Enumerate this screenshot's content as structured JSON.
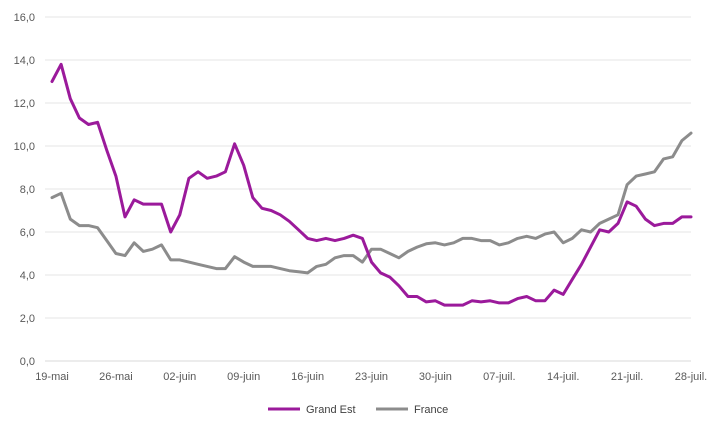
{
  "chart_data": {
    "type": "line",
    "ylim": [
      0,
      16
    ],
    "yticks": [
      "0,0",
      "2,0",
      "4,0",
      "6,0",
      "8,0",
      "10,0",
      "12,0",
      "14,0",
      "16,0"
    ],
    "xtick_labels": [
      "19-mai",
      "26-mai",
      "02-juin",
      "09-juin",
      "16-juin",
      "23-juin",
      "30-juin",
      "07-juil.",
      "14-juil.",
      "21-juil.",
      "28-juil."
    ],
    "grid": "horizontal",
    "legend_position": "bottom",
    "series": [
      {
        "name": "Grand Est",
        "color": "#9b1a9b",
        "values": [
          13.0,
          13.8,
          12.2,
          11.3,
          11.0,
          11.1,
          9.8,
          8.6,
          6.7,
          7.5,
          7.3,
          7.3,
          7.3,
          6.0,
          6.8,
          8.5,
          8.8,
          8.5,
          8.6,
          8.8,
          10.1,
          9.1,
          7.6,
          7.1,
          7.0,
          6.8,
          6.5,
          6.1,
          5.7,
          5.6,
          5.7,
          5.6,
          5.7,
          5.85,
          5.7,
          4.6,
          4.1,
          3.9,
          3.5,
          3.0,
          3.0,
          2.75,
          2.8,
          2.6,
          2.6,
          2.6,
          2.8,
          2.75,
          2.8,
          2.7,
          2.7,
          2.9,
          3.0,
          2.8,
          2.8,
          3.3,
          3.1,
          3.8,
          4.5,
          5.3,
          6.1,
          6.0,
          6.4,
          7.4,
          7.2,
          6.6,
          6.3,
          6.4,
          6.4,
          6.7,
          6.7
        ]
      },
      {
        "name": "France",
        "color": "#8c8c8c",
        "values": [
          7.6,
          7.8,
          6.6,
          6.3,
          6.3,
          6.2,
          5.6,
          5.0,
          4.9,
          5.5,
          5.1,
          5.2,
          5.4,
          4.7,
          4.7,
          4.6,
          4.5,
          4.4,
          4.3,
          4.3,
          4.85,
          4.6,
          4.4,
          4.4,
          4.4,
          4.3,
          4.2,
          4.15,
          4.1,
          4.4,
          4.5,
          4.8,
          4.9,
          4.9,
          4.6,
          5.2,
          5.2,
          5.0,
          4.8,
          5.1,
          5.3,
          5.45,
          5.5,
          5.4,
          5.5,
          5.7,
          5.7,
          5.6,
          5.6,
          5.4,
          5.5,
          5.7,
          5.8,
          5.7,
          5.9,
          6.0,
          5.5,
          5.7,
          6.1,
          6.0,
          6.4,
          6.6,
          6.8,
          8.2,
          8.6,
          8.7,
          8.8,
          9.4,
          9.5,
          10.25,
          10.6
        ]
      }
    ]
  }
}
